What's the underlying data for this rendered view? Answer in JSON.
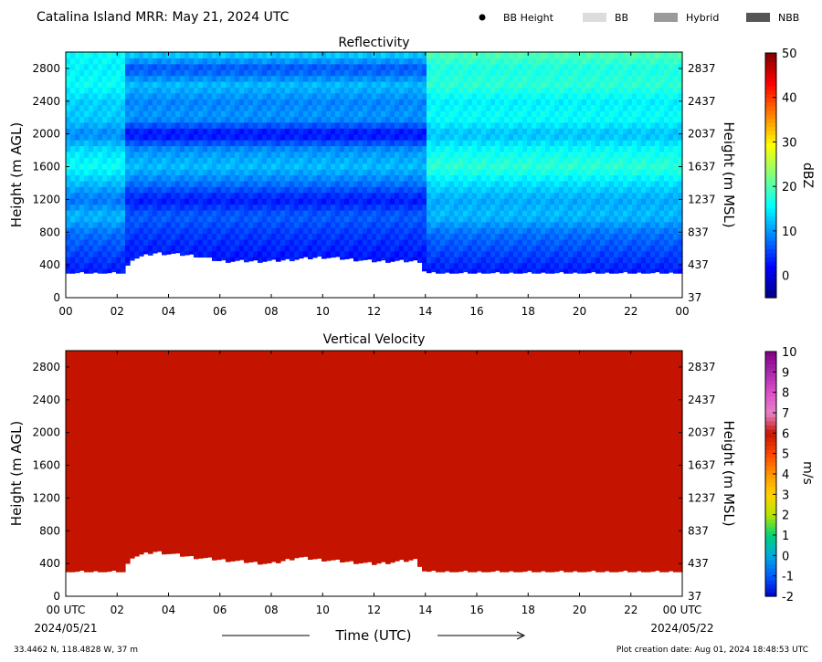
{
  "header": {
    "title": "Catalina Island MRR:  May 21, 2024 UTC",
    "legend": [
      {
        "label": "BB Height",
        "marker": "dot",
        "color": "#000000"
      },
      {
        "label": "BB",
        "marker": "swatch",
        "color": "#dcdcdc"
      },
      {
        "label": "Hybrid",
        "marker": "swatch",
        "color": "#9a9a9a"
      },
      {
        "label": "NBB",
        "marker": "swatch",
        "color": "#555555"
      }
    ]
  },
  "footer": {
    "location": "33.4462 N, 118.4828 W, 37 m",
    "creation": "Plot creation date: Aug 01, 2024 18:48:53 UTC",
    "xlabel": "Time (UTC)",
    "date_start": "2024/05/21",
    "date_end": "2024/05/22"
  },
  "chart_data": [
    {
      "type": "heatmap",
      "title": "Reflectivity",
      "xlabel": "Time (UTC)",
      "ylabel": "Height (m AGL)",
      "y2label": "Height (m MSL)",
      "xticks": [
        "00",
        "02",
        "04",
        "06",
        "08",
        "10",
        "12",
        "14",
        "16",
        "18",
        "20",
        "22",
        "00"
      ],
      "xlim": [
        0,
        24
      ],
      "yticks": [
        0,
        400,
        800,
        1200,
        1600,
        2000,
        2400,
        2800
      ],
      "ylim": [
        0,
        3000
      ],
      "y2ticks": [
        37,
        437,
        837,
        1237,
        1637,
        2037,
        2437,
        2837
      ],
      "grid": false,
      "colorbar": {
        "label": "dBZ",
        "ticks": [
          0,
          10,
          20,
          30,
          40,
          50
        ],
        "range": [
          -5,
          50
        ],
        "colormap": "jet"
      },
      "time_hours": [
        0,
        2.3,
        2.5,
        3.5,
        5,
        6,
        8,
        10,
        12,
        13.8,
        14,
        16,
        17,
        18,
        20,
        22,
        24
      ],
      "data_bottom_m": [
        300,
        300,
        470,
        550,
        520,
        450,
        450,
        500,
        450,
        450,
        300,
        300,
        300,
        300,
        300,
        300,
        300
      ],
      "data_top_m": 3000,
      "typical_dbz_profile": {
        "height_m": [
          300,
          500,
          800,
          1000,
          1200,
          1400,
          1600,
          1800,
          2000,
          2200,
          2400,
          2600,
          2800,
          3000
        ],
        "dbz_00_02": [
          3,
          5,
          8,
          12,
          8,
          12,
          16,
          14,
          9,
          13,
          13,
          16,
          15,
          16
        ],
        "dbz_02_14": [
          2,
          3,
          5,
          7,
          3,
          8,
          12,
          10,
          2,
          10,
          9,
          12,
          6,
          14
        ],
        "dbz_14_24": [
          3,
          5,
          8,
          12,
          11,
          14,
          18,
          16,
          12,
          16,
          15,
          18,
          17,
          20
        ]
      }
    },
    {
      "type": "heatmap",
      "title": "Vertical Velocity",
      "xlabel": "Time (UTC)",
      "ylabel": "Height (m AGL)",
      "y2label": "Height (m MSL)",
      "xticks": [
        "00 UTC",
        "02",
        "04",
        "06",
        "08",
        "10",
        "12",
        "14",
        "16",
        "18",
        "20",
        "22",
        "00 UTC"
      ],
      "xlim": [
        0,
        24
      ],
      "yticks": [
        0,
        400,
        800,
        1200,
        1600,
        2000,
        2400,
        2800
      ],
      "ylim": [
        0,
        3000
      ],
      "y2ticks": [
        37,
        437,
        837,
        1237,
        1637,
        2037,
        2437,
        2837
      ],
      "grid": false,
      "colorbar": {
        "label": "m/s",
        "ticks": [
          -2,
          -1,
          0,
          1,
          2,
          3,
          4,
          5,
          6,
          7,
          8,
          9,
          10
        ],
        "range": [
          -2,
          10
        ]
      },
      "time_hours": [
        0,
        2.3,
        2.5,
        3.5,
        5,
        6,
        8,
        9,
        10,
        12,
        13.6,
        14,
        16,
        18,
        20,
        22,
        24
      ],
      "data_bottom_m": [
        300,
        300,
        480,
        550,
        480,
        450,
        400,
        480,
        450,
        400,
        450,
        300,
        300,
        300,
        300,
        300,
        300
      ],
      "data_top_m": 3000,
      "uniform_value_ms": 6,
      "fill_color": "#c41400"
    }
  ]
}
